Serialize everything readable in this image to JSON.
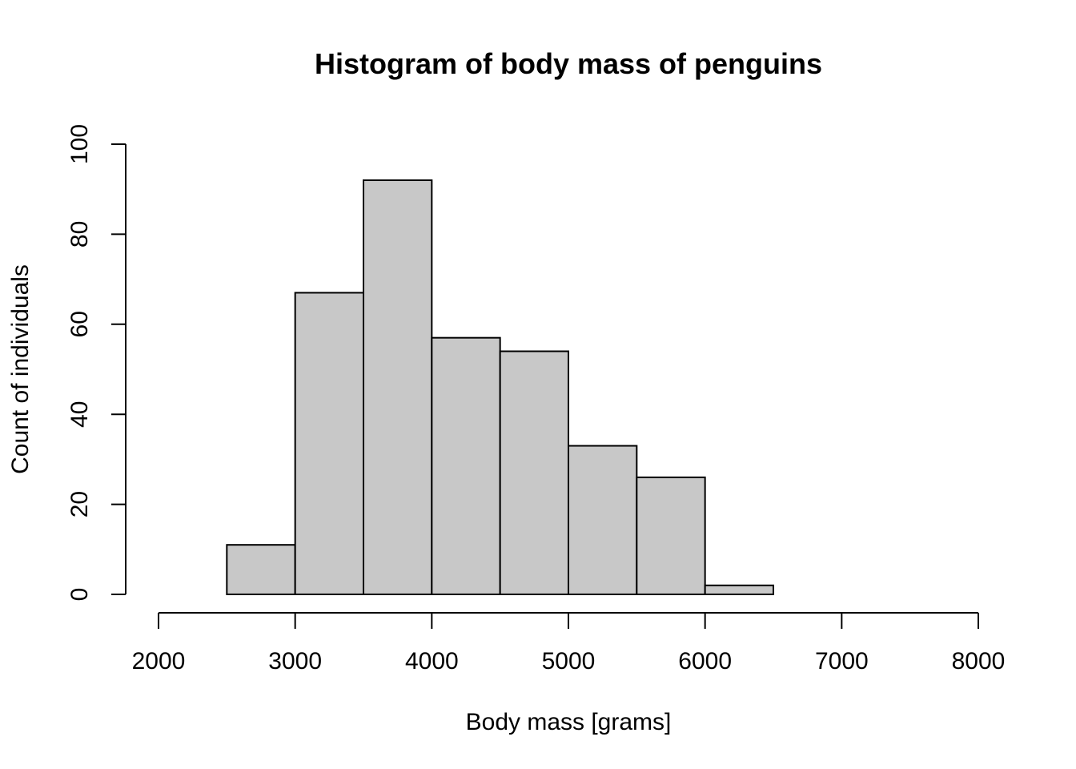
{
  "chart_data": {
    "type": "bar",
    "title": "Histogram of body mass of penguins",
    "xlabel": "Body mass [grams]",
    "ylabel": "Count of individuals",
    "bins": [
      {
        "start": 2500,
        "end": 3000,
        "count": 11
      },
      {
        "start": 3000,
        "end": 3500,
        "count": 67
      },
      {
        "start": 3500,
        "end": 4000,
        "count": 92
      },
      {
        "start": 4000,
        "end": 4500,
        "count": 57
      },
      {
        "start": 4500,
        "end": 5000,
        "count": 54
      },
      {
        "start": 5000,
        "end": 5500,
        "count": 33
      },
      {
        "start": 5500,
        "end": 6000,
        "count": 26
      },
      {
        "start": 6000,
        "end": 6500,
        "count": 2
      }
    ],
    "xlim": [
      2000,
      8000
    ],
    "ylim": [
      0,
      100
    ],
    "x_ticks": [
      "2000",
      "3000",
      "4000",
      "5000",
      "6000",
      "7000",
      "8000"
    ],
    "y_ticks": [
      "0",
      "20",
      "40",
      "60",
      "80",
      "100"
    ],
    "bar_color": "#c8c8c8",
    "border_color": "#000000",
    "grid": false,
    "legend": false
  }
}
